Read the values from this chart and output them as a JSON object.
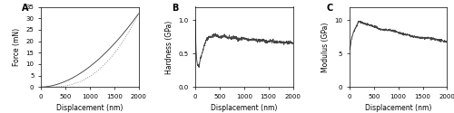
{
  "panel_A": {
    "label": "A",
    "xlabel": "Displacement (nm)",
    "ylabel": "Force (mN)",
    "xlim": [
      0,
      2000
    ],
    "ylim": [
      0,
      35
    ],
    "yticks": [
      0,
      5,
      10,
      15,
      20,
      25,
      30,
      35
    ],
    "xticks": [
      0,
      500,
      1000,
      1500,
      2000
    ],
    "load_color": "#444444",
    "unload_color": "#888888"
  },
  "panel_B": {
    "label": "B",
    "xlabel": "Displacement (nm)",
    "ylabel": "Hardness (GPa)",
    "xlim": [
      0,
      2000
    ],
    "ylim": [
      0.0,
      1.2
    ],
    "yticks": [
      0.0,
      0.5,
      1.0
    ],
    "xticks": [
      0,
      500,
      1000,
      1500,
      2000
    ],
    "line_color": "#444444"
  },
  "panel_C": {
    "label": "C",
    "xlabel": "Displacement (nm)",
    "ylabel": "Modulus (GPa)",
    "xlim": [
      0,
      2000
    ],
    "ylim": [
      0,
      12
    ],
    "yticks": [
      0,
      5,
      10
    ],
    "xticks": [
      0,
      500,
      1000,
      1500,
      2000
    ],
    "line_color": "#444444"
  },
  "background_color": "#ffffff",
  "tick_labelsize": 5,
  "label_fontsize": 5.5,
  "panel_label_fontsize": 7
}
